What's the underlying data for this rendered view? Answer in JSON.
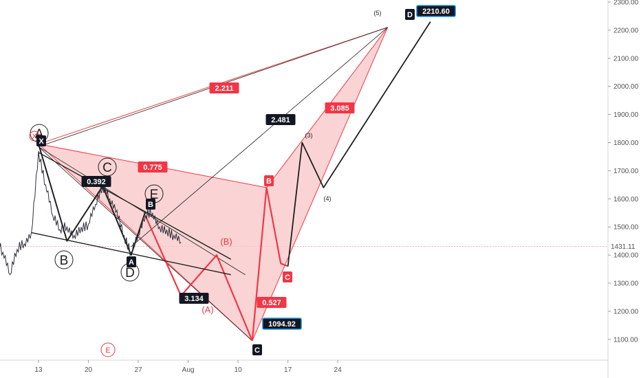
{
  "chart_data": {
    "type": "line",
    "title": "",
    "xlabel": "",
    "ylabel": "",
    "ylim": [
      1000,
      2300
    ],
    "y_ticks": [
      "2300.00",
      "2200.00",
      "2100.00",
      "2000.00",
      "1900.00",
      "1800.00",
      "1700.00",
      "1600.00",
      "1500.00",
      "1400.00",
      "1300.00",
      "1200.00",
      "1100.00"
    ],
    "x_ticks": [
      "13",
      "20",
      "27",
      "Aug",
      "10",
      "17",
      "24"
    ],
    "current_price": "1431.11",
    "grid": false,
    "colors": {
      "harmonic_fill": "#f8c6c6",
      "red": "#f23645",
      "black": "#1e1e1e",
      "label_dark": "#131722",
      "label_red": "#f23645",
      "badge_blue": "#2196f3"
    },
    "price_series": {
      "name": "",
      "points": [
        [
          "2020-07-05",
          1455
        ],
        [
          "2020-07-06",
          1420
        ],
        [
          "2020-07-07",
          1470
        ],
        [
          "2020-07-08",
          1410
        ],
        [
          "2020-07-09",
          1330
        ],
        [
          "2020-07-10",
          1420
        ],
        [
          "2020-07-11",
          1440
        ],
        [
          "2020-07-12",
          1480
        ],
        [
          "2020-07-13",
          1770
        ],
        [
          "2020-07-14",
          1650
        ],
        [
          "2020-07-15",
          1540
        ],
        [
          "2020-07-16",
          1490
        ],
        [
          "2020-07-17",
          1500
        ],
        [
          "2020-07-18",
          1470
        ],
        [
          "2020-07-19",
          1500
        ],
        [
          "2020-07-20",
          1510
        ],
        [
          "2020-07-21",
          1580
        ],
        [
          "2020-07-22",
          1640
        ],
        [
          "2020-07-23",
          1600
        ],
        [
          "2020-07-24",
          1560
        ],
        [
          "2020-07-25",
          1470
        ],
        [
          "2020-07-26",
          1410
        ],
        [
          "2020-07-27",
          1470
        ],
        [
          "2020-07-28",
          1540
        ],
        [
          "2020-07-29",
          1550
        ],
        [
          "2020-07-30",
          1500
        ],
        [
          "2020-07-31",
          1490
        ],
        [
          "2020-08-01",
          1470
        ],
        [
          "2020-08-02",
          1445
        ]
      ]
    },
    "harmonic": {
      "points": {
        "X": [
          "2020-07-13",
          1795
        ],
        "A": [
          "2020-08-01",
          1250
        ],
        "B": [
          "2020-08-14",
          1640
        ],
        "C": [
          "2020-08-12",
          1095
        ],
        "D": [
          "2020-08-31",
          2210
        ]
      },
      "labels": [
        "X",
        "A",
        "B",
        "C",
        "D"
      ],
      "ratios": [
        "2.211",
        "0.775",
        "0.392",
        "3.134",
        "2.481",
        "3.085",
        "0.527"
      ],
      "price_badges": [
        "2210.60",
        "1094.92"
      ]
    },
    "black_wave_points": {
      "X": [
        "2020-07-13",
        1795
      ],
      "B": [
        "2020-07-17",
        1450
      ],
      "C": [
        "2020-07-22",
        1645
      ],
      "A": [
        "2020-07-26",
        1400
      ],
      "Bsmall": [
        "2020-07-28",
        1555
      ],
      "Cbottom": [
        "2020-08-12",
        1095
      ]
    },
    "elliott_labels": {
      "circled_black": [
        "A",
        "B",
        "C",
        "D",
        "E"
      ],
      "circled_red": [
        "E"
      ],
      "red_abc": [
        "(A)",
        "(B)"
      ],
      "waves": [
        "(3)",
        "(4)",
        "(5)"
      ],
      "boxed_red": [
        "B",
        "C"
      ],
      "boxed_black": [
        "A",
        "B",
        "X",
        "C",
        "D"
      ],
      "red_circle_x": "X"
    }
  }
}
